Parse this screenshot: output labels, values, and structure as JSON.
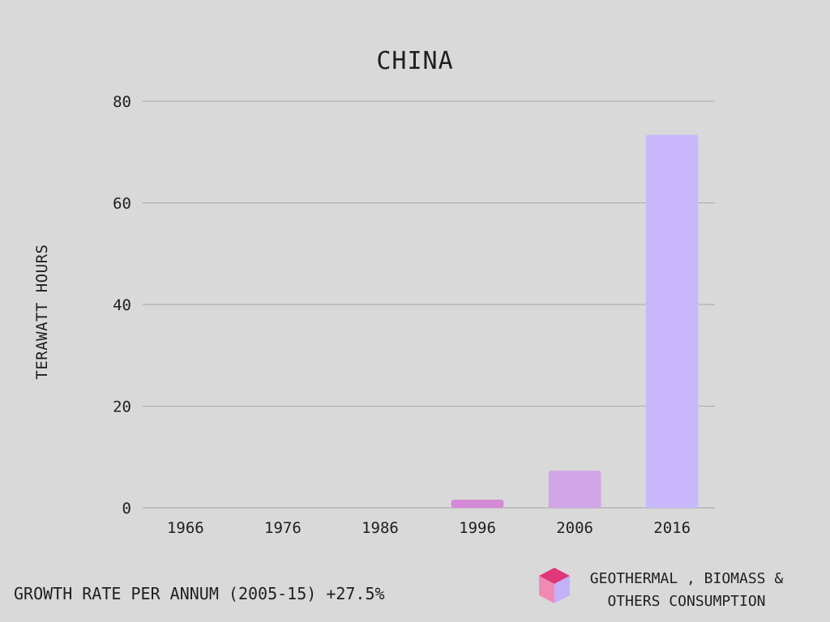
{
  "chart_data": {
    "type": "bar",
    "title": "CHINA",
    "ylabel": "TERAWATT HOURS",
    "xlabel": "",
    "categories": [
      "1966",
      "1976",
      "1986",
      "1996",
      "2006",
      "2016"
    ],
    "series": [
      {
        "name": "GEOTHERMAL , BIOMASS & OTHERS CONSUMPTION",
        "values": [
          0,
          0,
          0,
          1.6,
          7.3,
          73.4
        ],
        "colors": [
          "#d58ad7",
          "#d58ad7",
          "#d58ad7",
          "#d58ad7",
          "#d1a4e8",
          "#c8b8fb"
        ]
      }
    ],
    "ylim": [
      0,
      80
    ],
    "yticks": [
      0,
      20,
      40,
      60,
      80
    ],
    "grid": true,
    "legend_position": "bottom-right",
    "legend_label_line1": "GEOTHERMAL , BIOMASS &",
    "legend_label_line2": "OTHERS CONSUMPTION",
    "footer": "GROWTH RATE PER ANNUM (2005-15) +27.5%",
    "colors": {
      "background": "#d9d9d9",
      "grid": "#a8a8a8",
      "text": "#1f1f1f"
    }
  }
}
